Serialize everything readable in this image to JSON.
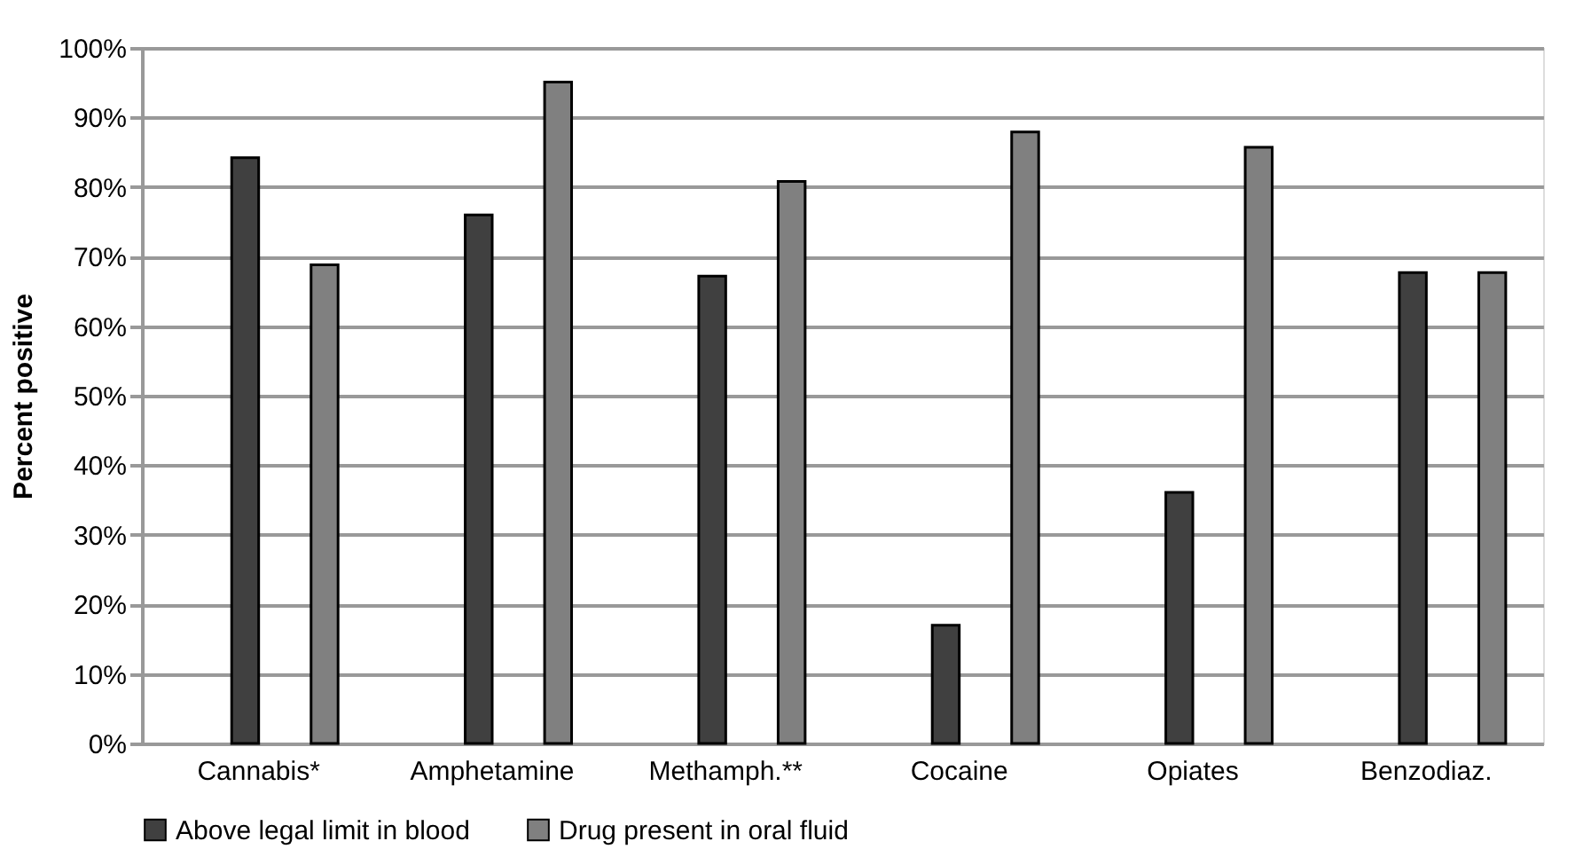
{
  "chart_data": {
    "type": "bar",
    "ylabel": "Percent positive",
    "categories": [
      "Cannabis*",
      "Amphetamine",
      "Methamph.**",
      "Cocaine",
      "Opiates",
      "Benzodiaz."
    ],
    "series": [
      {
        "name": "Above legal limit in blood",
        "color": "#404040",
        "values": [
          84.2,
          76.0,
          67.2,
          17.0,
          36.1,
          67.7
        ]
      },
      {
        "name": "Drug present in oral fluid",
        "color": "#808080",
        "values": [
          68.8,
          95.1,
          80.8,
          87.9,
          85.7,
          67.7
        ]
      }
    ],
    "ylim": [
      0,
      100
    ],
    "yticks": [
      {
        "value": 0,
        "label": "0%"
      },
      {
        "value": 10,
        "label": "10%"
      },
      {
        "value": 20,
        "label": "20%"
      },
      {
        "value": 30,
        "label": "30%"
      },
      {
        "value": 40,
        "label": "40%"
      },
      {
        "value": 50,
        "label": "50%"
      },
      {
        "value": 60,
        "label": "60%"
      },
      {
        "value": 70,
        "label": "70%"
      },
      {
        "value": 80,
        "label": "80%"
      },
      {
        "value": 90,
        "label": "90%"
      },
      {
        "value": 100,
        "label": "100%"
      }
    ],
    "grid": "y",
    "legend": "bottom"
  }
}
